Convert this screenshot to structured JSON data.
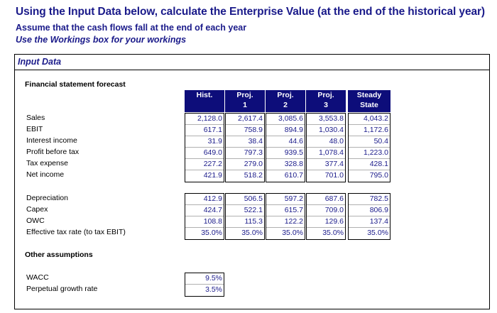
{
  "title": "Using the Input Data below, calculate the Enterprise Value (at the end of the historical year)",
  "subtitle": "Assume that the cash flows fall at the end of each year",
  "subtitle2": "Use the Workings box for your workings",
  "input_box": {
    "title": "Input Data",
    "section_financial": "Financial statement forecast",
    "section_other": "Other assumptions",
    "columns": [
      {
        "line1": "Hist.",
        "line2": ""
      },
      {
        "line1": "Proj.",
        "line2": "1"
      },
      {
        "line1": "Proj.",
        "line2": "2"
      },
      {
        "line1": "Proj.",
        "line2": "3"
      },
      {
        "line1": "Steady",
        "line2": "State"
      }
    ],
    "group1_labels": [
      "Sales",
      "EBIT",
      "Interest income",
      "Profit before tax",
      "Tax expense",
      "Net income"
    ],
    "group1_values": [
      [
        "2,128.0",
        "617.1",
        "31.9",
        "649.0",
        "227.2",
        "421.9"
      ],
      [
        "2,617.4",
        "758.9",
        "38.4",
        "797.3",
        "279.0",
        "518.2"
      ],
      [
        "3,085.6",
        "894.9",
        "44.6",
        "939.5",
        "328.8",
        "610.7"
      ],
      [
        "3,553.8",
        "1,030.4",
        "48.0",
        "1,078.4",
        "377.4",
        "701.0"
      ],
      [
        "4,043.2",
        "1,172.6",
        "50.4",
        "1,223.0",
        "428.1",
        "795.0"
      ]
    ],
    "group2_labels": [
      "Depreciation",
      "Capex",
      "OWC",
      "Effective tax rate (to tax EBIT)"
    ],
    "group2_values": [
      [
        "412.9",
        "424.7",
        "108.8",
        "35.0%"
      ],
      [
        "506.5",
        "522.1",
        "115.3",
        "35.0%"
      ],
      [
        "597.2",
        "615.7",
        "122.2",
        "35.0%"
      ],
      [
        "687.6",
        "709.0",
        "129.6",
        "35.0%"
      ],
      [
        "782.5",
        "806.9",
        "137.4",
        "35.0%"
      ]
    ],
    "other_labels": [
      "WACC",
      "Perpetual growth rate"
    ],
    "other_values": [
      "9.5%",
      "3.5%"
    ]
  }
}
